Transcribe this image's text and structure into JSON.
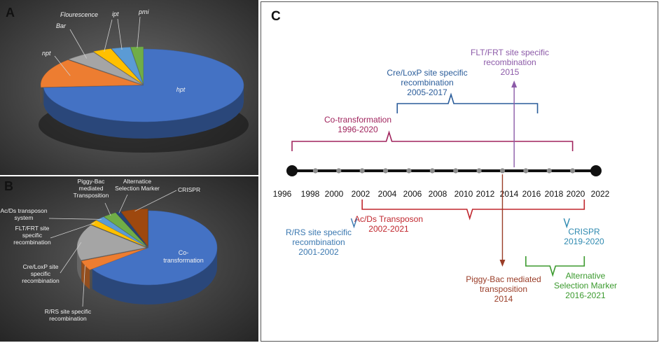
{
  "colors": {
    "hpt": "#4472c4",
    "npt": "#ed7d31",
    "bar": "#a5a5a5",
    "flour": "#ffc000",
    "ipt": "#5b9bd5",
    "pmi": "#70ad47",
    "cotrans": "#4472c4",
    "rrs": "#ed7d31",
    "creloxp": "#a5a5a5",
    "fltfrt": "#ffc000",
    "acds": "#5b9bd5",
    "piggy": "#70ad47",
    "altsel": "#264478",
    "crispr": "#9e480e",
    "timeline_cotrans": "#a0245d",
    "timeline_cre": "#2a5c9a",
    "timeline_flt": "#8c5aa8",
    "timeline_acds": "#c0262d",
    "timeline_rrs": "#3b78b0",
    "timeline_piggy": "#9a3d28",
    "timeline_crispr": "#2f8ab0",
    "timeline_alt": "#3b9a2e"
  },
  "panels": {
    "a_label": "A",
    "b_label": "B",
    "c_label": "C"
  },
  "chart_data": [
    {
      "id": "A",
      "type": "pie",
      "style": "3d-exploded",
      "title": "",
      "labels": [
        "hpt",
        "npt",
        "Bar",
        "Flourescence",
        "ipt",
        "pmi"
      ],
      "values": [
        74,
        13,
        5,
        3,
        3,
        2
      ],
      "colors": [
        "#4472c4",
        "#ed7d31",
        "#a5a5a5",
        "#ffc000",
        "#5b9bd5",
        "#70ad47"
      ]
    },
    {
      "id": "B",
      "type": "pie",
      "style": "3d-exploded",
      "title": "",
      "labels": [
        "Co-transformation",
        "R/RS site specific recombination",
        "Cre/LoxP site specific recombination",
        "FLT/FRT site specific recombination",
        "Ac/Ds transposon system",
        "Piggy-Bac mediated Transposition",
        "Alternatice Selection Marker",
        "CRISPR"
      ],
      "label_display": [
        "Co-\ntransformation",
        "R/RS site specific\nrecombination",
        "Cre/LoxP site\nspecific\nrecombination",
        "FLT/FRT site\nspecific\nrecombination",
        "Ac/Ds transposon\nsystem",
        "Piggy-Bac\nmediated\nTransposition",
        "Alternatice\nSelection Marker",
        "CRISPR"
      ],
      "values": [
        62,
        4,
        15,
        2,
        2,
        3,
        1,
        6
      ],
      "colors": [
        "#4472c4",
        "#ed7d31",
        "#a5a5a5",
        "#ffc000",
        "#5b9bd5",
        "#70ad47",
        "#264478",
        "#9e480e"
      ]
    },
    {
      "id": "C",
      "type": "timeline",
      "axis": {
        "start": 1996,
        "end": 2022
      },
      "tick_labels": [
        "1996",
        "1998",
        "2000",
        "2002",
        "2004",
        "2006",
        "2008",
        "2010",
        "2012",
        "2014",
        "2016",
        "2018",
        "2020",
        "2022"
      ],
      "events": [
        {
          "id": "cotrans",
          "lines": [
            "Co-transformation",
            "1996-2020"
          ],
          "start": 1996,
          "end": 2020,
          "kind": "bracket-above"
        },
        {
          "id": "cre",
          "lines": [
            "Cre/LoxP site specific",
            "recombination",
            "2005-2017"
          ],
          "start": 2005,
          "end": 2017,
          "kind": "bracket-above"
        },
        {
          "id": "flt",
          "lines": [
            "FLT/FRT site specific",
            "recombination",
            "2015"
          ],
          "start": 2015,
          "end": 2015,
          "kind": "arrow-up"
        },
        {
          "id": "acds",
          "lines": [
            "Ac/Ds Transposon",
            "2002-2021"
          ],
          "start": 2002,
          "end": 2021,
          "kind": "bracket-below"
        },
        {
          "id": "rrs",
          "lines": [
            "R/RS site specific",
            "recombination",
            "2001-2002"
          ],
          "start": 2001,
          "end": 2002,
          "kind": "brace-below"
        },
        {
          "id": "piggy",
          "lines": [
            "Piggy-Bac mediated",
            "transposition",
            "2014"
          ],
          "start": 2014,
          "end": 2014,
          "kind": "arrow-down"
        },
        {
          "id": "crispr",
          "lines": [
            "CRISPR",
            "2019-2020"
          ],
          "start": 2019,
          "end": 2020,
          "kind": "brace-below"
        },
        {
          "id": "alt",
          "lines": [
            "Alternative",
            "Selection Marker",
            "2016-2021"
          ],
          "start": 2016,
          "end": 2021,
          "kind": "bracket-below"
        }
      ]
    }
  ]
}
